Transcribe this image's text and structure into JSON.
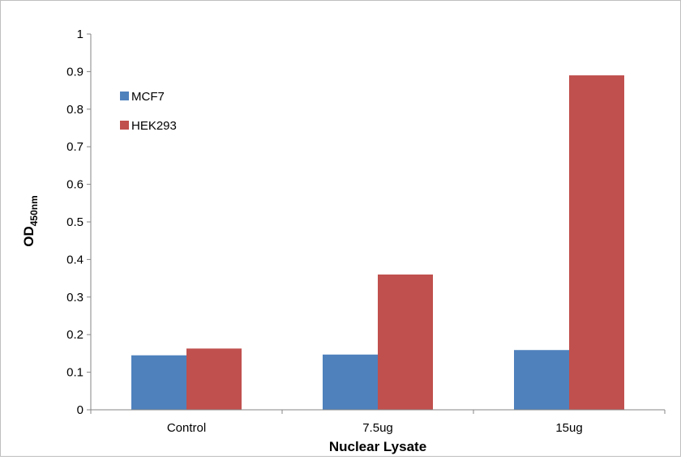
{
  "chart_data": {
    "type": "bar",
    "title": "",
    "xlabel": "Nuclear Lysate",
    "ylabel": {
      "main": "OD",
      "subscript": "450nm"
    },
    "categories": [
      "Control",
      "7.5ug",
      "15ug"
    ],
    "series": [
      {
        "name": "MCF7",
        "color": "#4f81bd",
        "values": [
          0.145,
          0.147,
          0.159
        ]
      },
      {
        "name": "HEK293",
        "color": "#c0504d",
        "values": [
          0.163,
          0.36,
          0.89
        ]
      }
    ],
    "ylim": [
      0,
      1
    ],
    "yticks": [
      "0",
      "0.1",
      "0.2",
      "0.3",
      "0.4",
      "0.5",
      "0.6",
      "0.7",
      "0.8",
      "0.9",
      "1"
    ],
    "grid": false,
    "legend_position": "top-left"
  }
}
